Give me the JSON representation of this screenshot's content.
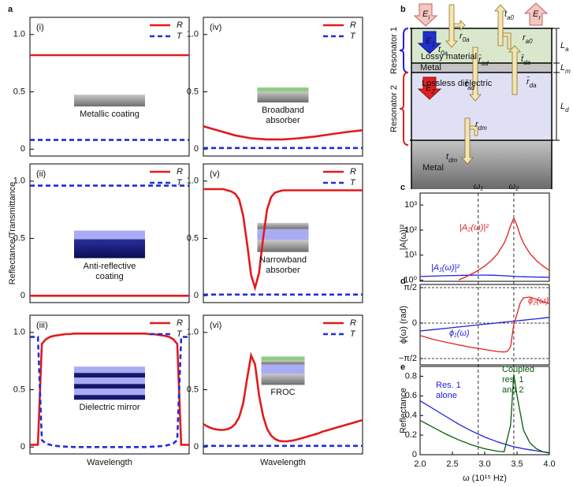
{
  "figure": {
    "panel_labels": [
      "a",
      "b",
      "c",
      "d",
      "e"
    ]
  },
  "diagram": {
    "labels": [
      {
        "text": "E",
        "sub": "i"
      },
      {
        "text": "E",
        "sub": "r"
      },
      {
        "text": "E",
        "sub": "1"
      },
      {
        "text": "E",
        "sub": "2"
      },
      {
        "text": "r",
        "sub": "0a"
      },
      {
        "text": "t",
        "sub": "0a"
      },
      {
        "text": "t",
        "sub": "a0"
      },
      {
        "text": "r",
        "sub": "a0"
      },
      {
        "text": "r̄",
        "sub": "ad"
      },
      {
        "text": "t̄",
        "sub": "da"
      },
      {
        "text": "t̄",
        "sub": "ad"
      },
      {
        "text": "r̄",
        "sub": "da"
      },
      {
        "text": "r",
        "sub": "dm"
      },
      {
        "text": "t",
        "sub": "dm"
      }
    ],
    "layers": [
      "Lossy material",
      "Metal",
      "Lossless dielectric",
      "Metal"
    ],
    "resonators": [
      "Resonator 1",
      "Resonator 2"
    ],
    "thickness": [
      {
        "text": "L",
        "sub": "a"
      },
      {
        "text": "L",
        "sub": "m"
      },
      {
        "text": "L",
        "sub": "d"
      }
    ]
  },
  "chart_data": [
    {
      "type": "line",
      "panel": "(i)",
      "annotation": "Metallic coating",
      "legend": "upper right",
      "ylim": [
        -0.06,
        1.15
      ],
      "yticks": [
        0,
        0.5,
        {
          "value": 1,
          "label": "1.0"
        }
      ],
      "series": [
        {
          "name": "R",
          "color": "#e31a1c",
          "style": "solid",
          "values": [
            0.82,
            0.82
          ]
        },
        {
          "name": "T",
          "color": "#1f2fd6",
          "style": "dashed",
          "values": [
            0.08,
            0.08
          ]
        }
      ]
    },
    {
      "type": "line",
      "panel": "(ii)",
      "annotation": "Anti-reflective\ncoating",
      "legend": "upper right",
      "ylabel": "Reflectance/Transmittance",
      "ylim": [
        -0.06,
        1.15
      ],
      "yticks": [
        0,
        0.5,
        {
          "value": 1,
          "label": "1.0"
        }
      ],
      "series": [
        {
          "name": "R",
          "color": "#e31a1c",
          "style": "solid",
          "values": [
            0,
            0
          ]
        },
        {
          "name": "T",
          "color": "#1f2fd6",
          "style": "dashed",
          "values": [
            0.96,
            0.96
          ]
        }
      ]
    },
    {
      "type": "line",
      "panel": "(iii)",
      "annotation": "Dielectric mirror",
      "legend": "upper right",
      "xlabel": "Wavelength",
      "ylim": [
        -0.06,
        1.15
      ],
      "yticks": [
        0,
        0.5,
        {
          "value": 1,
          "label": "1.0"
        }
      ],
      "series": [
        {
          "name": "R",
          "color": "#e31a1c",
          "style": "solid",
          "values": [
            0.02,
            0.02,
            0.02,
            0.9,
            0.94,
            0.96,
            0.97,
            0.975,
            0.98,
            0.985,
            0.985,
            0.99,
            0.99,
            0.99,
            0.99,
            0.99,
            0.99,
            0.99,
            0.99,
            0.99,
            0.99,
            0.99,
            0.99,
            0.99,
            0.99,
            0.99,
            0.99,
            0.99,
            0.99,
            0.99,
            0.985,
            0.985,
            0.98,
            0.975,
            0.97,
            0.96,
            0.94,
            0.9,
            0.02,
            0.02,
            0.02
          ]
        },
        {
          "name": "T",
          "color": "#1f2fd6",
          "style": "dashed",
          "values": [
            0.96,
            0.96,
            0.96,
            0.06,
            0.03,
            0.02,
            0.012,
            0.008,
            0.005,
            0.003,
            0.002,
            0,
            0,
            0,
            0,
            0,
            0,
            0,
            0,
            0,
            0,
            0,
            0,
            0,
            0,
            0,
            0,
            0,
            0,
            0,
            0.002,
            0.003,
            0.005,
            0.008,
            0.012,
            0.02,
            0.03,
            0.06,
            0.96,
            0.96,
            0.96
          ]
        }
      ]
    },
    {
      "type": "line",
      "panel": "(iv)",
      "annotation": "Broadband\nabsorber",
      "legend": "upper right",
      "ylim": [
        -0.06,
        1.15
      ],
      "yticks": [
        0,
        0.5,
        {
          "value": 1,
          "label": "1.0"
        }
      ],
      "series": [
        {
          "name": "R",
          "color": "#e31a1c",
          "style": "solid",
          "values": [
            0.2,
            0.16,
            0.12,
            0.095,
            0.085,
            0.085,
            0.095,
            0.11,
            0.13,
            0.15,
            0.165
          ]
        },
        {
          "name": "T",
          "color": "#1f2fd6",
          "style": "dashed",
          "values": [
            0.01,
            0.01
          ]
        }
      ]
    },
    {
      "type": "line",
      "panel": "(v)",
      "annotation": "Narrowband\nabsorber",
      "legend": "upper right",
      "ylim": [
        -0.06,
        1.15
      ],
      "yticks": [
        0,
        0.5,
        {
          "value": 1,
          "label": "1.0"
        }
      ],
      "series": [
        {
          "name": "R",
          "color": "#e31a1c",
          "style": "solid",
          "values": [
            0.93,
            0.93,
            0.93,
            0.93,
            0.93,
            0.93,
            0.92,
            0.91,
            0.89,
            0.84,
            0.7,
            0.45,
            0.18,
            0.07,
            0.2,
            0.5,
            0.75,
            0.86,
            0.9,
            0.91,
            0.92,
            0.92,
            0.92,
            0.92,
            0.92,
            0.92,
            0.92,
            0.92,
            0.92,
            0.92,
            0.92,
            0.92,
            0.92,
            0.92,
            0.92,
            0.92,
            0.92,
            0.92,
            0.92,
            0.92,
            0.92
          ]
        },
        {
          "name": "T",
          "color": "#1f2fd6",
          "style": "dashed",
          "values": [
            0.01,
            0.01
          ]
        }
      ]
    },
    {
      "type": "line",
      "panel": "(vi)",
      "annotation": "FROC",
      "legend": "upper right",
      "xlabel": "Wavelength",
      "ylim": [
        -0.06,
        1.15
      ],
      "yticks": [
        0,
        0.5,
        {
          "value": 1,
          "label": "1.0"
        }
      ],
      "series": [
        {
          "name": "R",
          "color": "#e31a1c",
          "style": "solid",
          "values": [
            0.2,
            0.18,
            0.165,
            0.155,
            0.15,
            0.15,
            0.155,
            0.17,
            0.2,
            0.26,
            0.38,
            0.6,
            0.8,
            0.72,
            0.45,
            0.27,
            0.16,
            0.1,
            0.07,
            0.055,
            0.05,
            0.05,
            0.055,
            0.06,
            0.07,
            0.08,
            0.09,
            0.1,
            0.11,
            0.12,
            0.135,
            0.145,
            0.155,
            0.165,
            0.175,
            0.185,
            0.195,
            0.205,
            0.215,
            0.225,
            0.235
          ]
        },
        {
          "name": "T",
          "color": "#1f2fd6",
          "style": "dashed",
          "values": [
            0.01,
            0.01
          ]
        }
      ]
    },
    {
      "type": "line",
      "ylabel": "|A(ω)|²",
      "log_y": true,
      "xlim": [
        2,
        4
      ],
      "ylim": [
        0.9,
        3000
      ],
      "yticks": [
        {
          "value": 1,
          "label": "10⁰"
        },
        {
          "value": 10,
          "label": "10¹"
        },
        {
          "value": 100,
          "label": "10²"
        },
        {
          "value": 1000,
          "label": "10³"
        }
      ],
      "vlines": [
        {
          "value": 2.9,
          "label": "ω₁"
        },
        {
          "value": 3.45,
          "label": "ω₂"
        }
      ],
      "x": [
        2.0,
        2.2,
        2.4,
        2.6,
        2.7,
        2.85,
        3.0,
        3.1,
        3.2,
        3.3,
        3.35,
        3.4,
        3.45,
        3.5,
        3.55,
        3.6,
        3.7,
        3.8,
        3.9,
        4.0
      ],
      "series": [
        {
          "name": "|A₁(ω)|²",
          "color": "#2020e0",
          "style": "solid",
          "values": [
            1.4,
            1.45,
            1.5,
            1.55,
            1.57,
            1.6,
            1.6,
            1.58,
            1.55,
            1.5,
            1.47,
            1.45,
            1.42,
            1.4,
            1.38,
            1.37,
            1.35,
            1.33,
            1.32,
            1.3
          ]
        },
        {
          "name": "|A₂(ω)|²",
          "color": "#e02020",
          "style": "solid",
          "values": [
            null,
            null,
            null,
            1.03,
            1.33,
            2.07,
            3.66,
            6.0,
            11.5,
            30,
            60,
            150,
            300,
            150,
            60,
            30,
            11.5,
            6.0,
            3.66,
            2.46
          ]
        }
      ]
    },
    {
      "type": "line",
      "ylabel": "ϕ(ω) (rad)",
      "grid": true,
      "xlim": [
        2,
        4
      ],
      "ylim": [
        -1.85,
        1.71
      ],
      "yticks": [
        {
          "value": 1.5708,
          "label": "π/2"
        },
        0,
        {
          "value": -1.5708,
          "label": "−π/2"
        }
      ],
      "x": [
        2.0,
        2.2,
        2.4,
        2.6,
        2.8,
        3.0,
        3.1,
        3.2,
        3.3,
        3.35,
        3.4,
        3.45,
        3.5,
        3.55,
        3.6,
        3.7,
        3.8,
        3.9,
        4.0
      ],
      "series": [
        {
          "name": "ϕ₁(ω)",
          "color": "#2020e0",
          "style": "solid",
          "values": [
            -0.35,
            -0.29,
            -0.23,
            -0.17,
            -0.11,
            -0.05,
            -0.02,
            0.01,
            0.04,
            0.055,
            0.07,
            0.085,
            0.1,
            0.115,
            0.13,
            0.16,
            0.19,
            0.22,
            0.25
          ]
        },
        {
          "name": "ϕ₂(ω)",
          "color": "#e02020",
          "style": "solid",
          "values": [
            -0.55,
            -0.72,
            -0.85,
            -0.97,
            -1.08,
            -1.17,
            -1.22,
            -1.26,
            -1.28,
            -1.25,
            -1.05,
            -0.05,
            0.4,
            0.9,
            1.12,
            1.15,
            1.05,
            0.95,
            0.87
          ]
        }
      ]
    },
    {
      "type": "line",
      "ylabel": "Reflectance",
      "xlabel": "ω (10¹⁵ Hz)",
      "xlim": [
        2,
        4
      ],
      "ylim": [
        0,
        0.9
      ],
      "xticks": [
        {
          "value": 2,
          "label": "2.0"
        },
        2.5,
        {
          "value": 3,
          "label": "3.0"
        },
        3.5,
        {
          "value": 4,
          "label": "4.0"
        }
      ],
      "yticks": [
        0,
        0.2,
        0.4,
        0.6,
        0.8
      ],
      "x": [
        2.0,
        2.2,
        2.4,
        2.6,
        2.8,
        3.0,
        3.2,
        3.3,
        3.4,
        3.45,
        3.5,
        3.6,
        3.7,
        3.8,
        3.9,
        4.0
      ],
      "series": [
        {
          "name": "Res. 1\nalone",
          "color": "#2020e0",
          "style": "solid",
          "values": [
            0.55,
            0.47,
            0.39,
            0.31,
            0.24,
            0.18,
            0.13,
            0.11,
            0.09,
            0.08,
            0.075,
            0.06,
            0.05,
            0.04,
            0.03,
            0.02
          ]
        },
        {
          "name": "Coupled\nres. 1\nand 2",
          "color": "#0a5a0a",
          "style": "solid",
          "values": [
            0.35,
            0.28,
            0.21,
            0.15,
            0.1,
            0.06,
            0.035,
            0.03,
            0.3,
            0.82,
            0.6,
            0.25,
            0.12,
            0.06,
            0.03,
            0.015
          ]
        }
      ]
    }
  ]
}
